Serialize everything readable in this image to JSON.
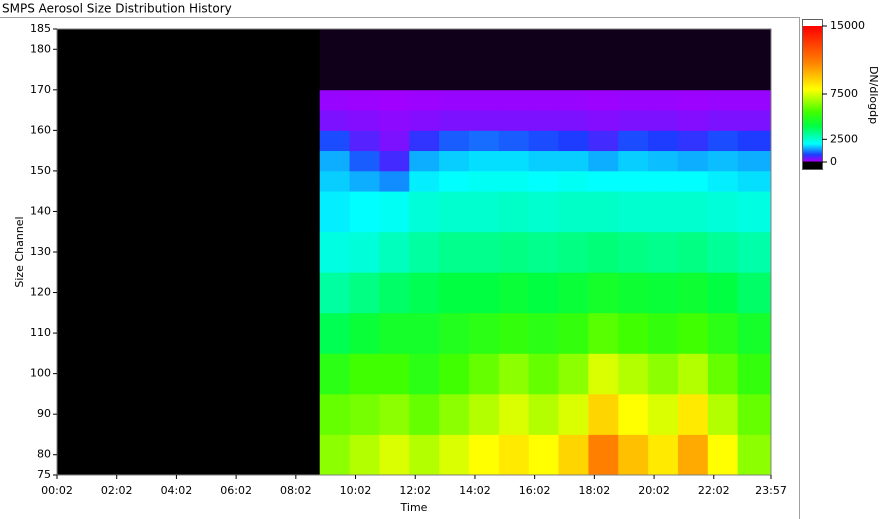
{
  "chart_data": {
    "type": "heatmap",
    "title": "SMPS Aerosol Size Distribution History",
    "xlabel": "Time",
    "ylabel": "Size Channel",
    "xlim": [
      2,
      1437
    ],
    "ylim": [
      75,
      185
    ],
    "xticks": [
      {
        "value": 2,
        "label": "00:02"
      },
      {
        "value": 122,
        "label": "02:02"
      },
      {
        "value": 242,
        "label": "04:02"
      },
      {
        "value": 362,
        "label": "06:02"
      },
      {
        "value": 482,
        "label": "08:02"
      },
      {
        "value": 602,
        "label": "10:02"
      },
      {
        "value": 722,
        "label": "12:02"
      },
      {
        "value": 842,
        "label": "14:02"
      },
      {
        "value": 962,
        "label": "16:02"
      },
      {
        "value": 1082,
        "label": "18:02"
      },
      {
        "value": 1202,
        "label": "20:02"
      },
      {
        "value": 1322,
        "label": "22:02"
      },
      {
        "value": 1437,
        "label": "23:57"
      }
    ],
    "yticks": [
      75,
      80,
      90,
      100,
      110,
      120,
      130,
      140,
      150,
      160,
      170,
      180,
      185
    ],
    "x_edges": [
      530,
      590,
      650,
      710,
      770,
      830,
      890,
      950,
      1010,
      1070,
      1130,
      1190,
      1250,
      1310,
      1370,
      1437
    ],
    "y_edges": [
      75,
      85,
      95,
      105,
      115,
      125,
      135,
      145,
      150,
      155,
      160,
      165,
      170,
      185
    ],
    "z": [
      [
        6500,
        7000,
        7500,
        7000,
        7500,
        8000,
        8500,
        8000,
        9000,
        11000,
        9500,
        8500,
        10000,
        8000,
        6500
      ],
      [
        6000,
        6200,
        6500,
        6000,
        6500,
        7000,
        7500,
        7000,
        7500,
        9000,
        8000,
        7500,
        8500,
        7000,
        6000
      ],
      [
        5000,
        5500,
        5500,
        5000,
        5500,
        6000,
        6500,
        6000,
        6500,
        7500,
        7000,
        6500,
        7000,
        6000,
        5200
      ],
      [
        3800,
        4200,
        4500,
        4500,
        4800,
        5000,
        5200,
        5000,
        5200,
        5800,
        5500,
        5200,
        5500,
        5000,
        4500
      ],
      [
        3000,
        3300,
        3600,
        3800,
        4000,
        4000,
        4200,
        4000,
        4200,
        4500,
        4300,
        4200,
        4300,
        4000,
        3600
      ],
      [
        2300,
        2400,
        2700,
        3000,
        3200,
        3200,
        3300,
        3200,
        3300,
        3400,
        3300,
        3200,
        3300,
        3100,
        2900
      ],
      [
        1900,
        2000,
        2100,
        2400,
        2500,
        2500,
        2600,
        2500,
        2600,
        2600,
        2500,
        2500,
        2500,
        2400,
        2300
      ],
      [
        1700,
        1500,
        1300,
        1900,
        2000,
        2100,
        2100,
        2000,
        2100,
        2000,
        2000,
        2000,
        2000,
        1900,
        1800
      ],
      [
        1500,
        1000,
        600,
        1500,
        1700,
        1800,
        1800,
        1700,
        1700,
        1500,
        1700,
        1600,
        1500,
        1600,
        1500
      ],
      [
        900,
        500,
        300,
        700,
        1000,
        1100,
        1000,
        900,
        800,
        600,
        900,
        800,
        700,
        900,
        800
      ],
      [
        300,
        250,
        200,
        250,
        300,
        300,
        300,
        300,
        300,
        250,
        300,
        300,
        250,
        300,
        300
      ],
      [
        150,
        120,
        100,
        120,
        150,
        150,
        150,
        150,
        150,
        120,
        150,
        150,
        120,
        150,
        150
      ],
      [
        10,
        10,
        10,
        10,
        10,
        10,
        10,
        10,
        10,
        10,
        10,
        10,
        10,
        10,
        10
      ]
    ],
    "background": "#000000",
    "colorscale": [
      {
        "value": 0,
        "color": "#000000"
      },
      {
        "value": 100,
        "color": "#a000ff"
      },
      {
        "value": 800,
        "color": "#1e3cff"
      },
      {
        "value": 2000,
        "color": "#00ffff"
      },
      {
        "value": 4000,
        "color": "#00ff40"
      },
      {
        "value": 5500,
        "color": "#40ff00"
      },
      {
        "value": 8000,
        "color": "#ffff00"
      },
      {
        "value": 11000,
        "color": "#ff8000"
      },
      {
        "value": 15000,
        "color": "#ff0000"
      }
    ],
    "colorbar": {
      "label": "DN/dlogdp",
      "lim": [
        0,
        15000
      ],
      "ticks": [
        0,
        2500,
        7500,
        15000
      ]
    }
  }
}
